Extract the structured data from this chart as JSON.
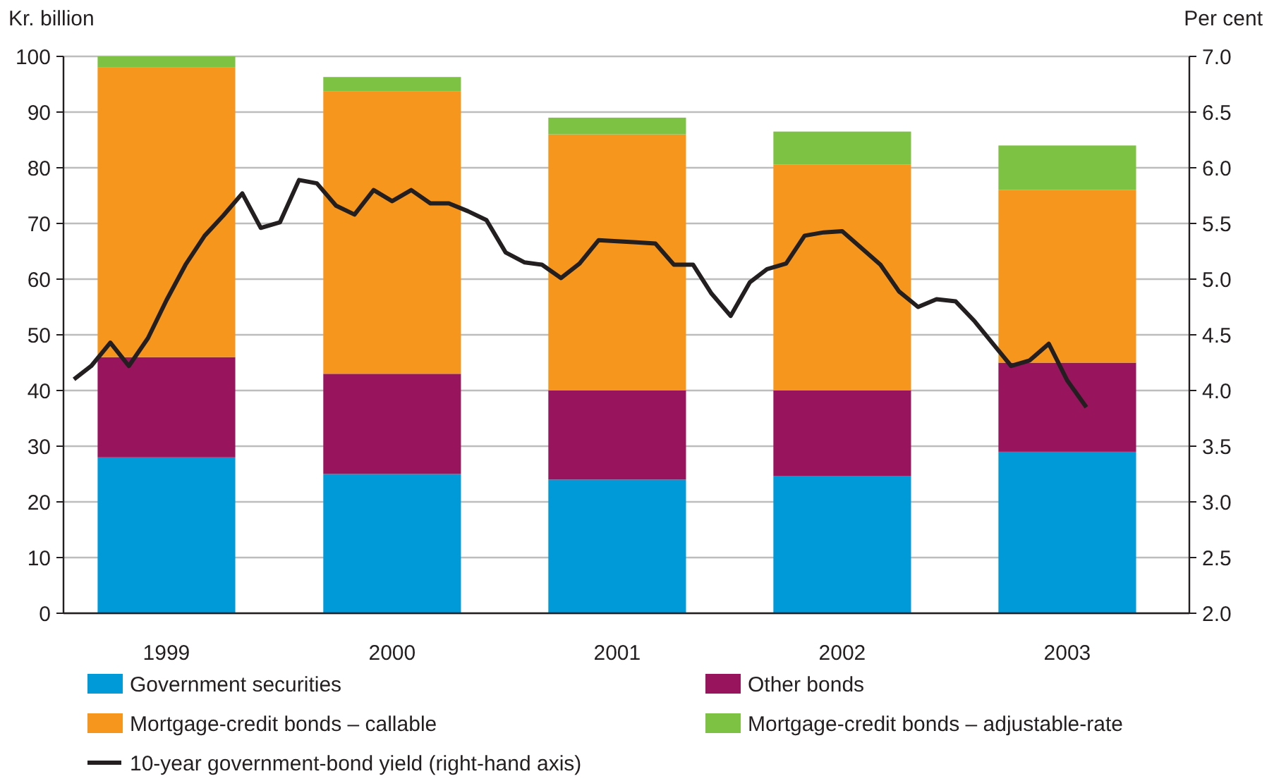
{
  "chart_data": {
    "type": "bar",
    "stacked": true,
    "ylabel": "Kr. billion",
    "y2label": "Per cent",
    "x": [
      "1999-07-01",
      "2000-07-01",
      "2001-07-01",
      "2002-07-01",
      "2003-07-01"
    ],
    "xlim": [
      "1999-01-15",
      "2004-01-15"
    ],
    "xticks": [
      {
        "value": "1999-07-01",
        "label": "1999"
      },
      {
        "value": "2000-07-01",
        "label": "2000"
      },
      {
        "value": "2001-07-01",
        "label": "2001"
      },
      {
        "value": "2002-07-01",
        "label": "2002"
      },
      {
        "value": "2003-07-01",
        "label": "2003"
      }
    ],
    "ylim": [
      0,
      100
    ],
    "yticks": [
      0,
      10,
      20,
      30,
      40,
      50,
      60,
      70,
      80,
      90,
      100
    ],
    "y2lim": [
      2,
      7
    ],
    "y2ticks": [
      {
        "value": 2,
        "label": "2.0"
      },
      {
        "value": 2.5,
        "label": "2.5"
      },
      {
        "value": 3,
        "label": "3.0"
      },
      {
        "value": 3.5,
        "label": "3.5"
      },
      {
        "value": 4,
        "label": "4.0"
      },
      {
        "value": 4.5,
        "label": "4.5"
      },
      {
        "value": 5,
        "label": "5.0"
      },
      {
        "value": 5.5,
        "label": "5.5"
      },
      {
        "value": 6,
        "label": "6.0"
      },
      {
        "value": 6.5,
        "label": "6.5"
      },
      {
        "value": 7,
        "label": "7.0"
      }
    ],
    "grid": "y",
    "legend": "bottom",
    "series": [
      {
        "name": "Government securities",
        "color": "#009ad8",
        "values": [
          28,
          25,
          24,
          24.6,
          29
        ]
      },
      {
        "name": "Other bonds",
        "color": "#98155e",
        "values": [
          18,
          18,
          16,
          15.4,
          16
        ]
      },
      {
        "name": "Mortgage-credit bonds – callable",
        "color": "#f7961d",
        "values": [
          52,
          50.7,
          46,
          40.6,
          31
        ]
      },
      {
        "name": "Mortgage-credit bonds – adjustable-rate",
        "color": "#7dc242",
        "values": [
          2,
          2.6,
          3,
          5.9,
          8
        ]
      },
      {
        "name": "10-year government-bond yield (right-hand axis)",
        "color": "#231f20",
        "type": "line",
        "axis": "y2",
        "line_style": "solid",
        "marker": "none",
        "x": [
          "1999-02",
          "1999-03",
          "1999-04",
          "1999-05",
          "1999-06",
          "1999-07",
          "1999-08",
          "1999-09",
          "1999-10",
          "1999-11",
          "1999-12",
          "2000-01",
          "2000-02",
          "2000-03",
          "2000-04",
          "2000-05",
          "2000-06",
          "2000-07",
          "2000-08",
          "2000-09",
          "2000-10",
          "2000-11",
          "2000-12",
          "2001-01",
          "2001-02",
          "2001-03",
          "2001-04",
          "2001-05",
          "2001-06",
          "2001-07",
          "2001-08",
          "2001-09",
          "2001-10",
          "2001-11",
          "2001-12",
          "2002-01",
          "2002-02",
          "2002-03",
          "2002-04",
          "2002-05",
          "2002-06",
          "2002-07",
          "2002-08",
          "2002-09",
          "2002-10",
          "2002-11",
          "2002-12",
          "2003-01",
          "2003-02",
          "2003-03",
          "2003-04",
          "2003-05",
          "2003-06",
          "2003-07",
          "2003-08"
        ],
        "values": [
          4.1,
          4.22,
          4.43,
          4.22,
          4.47,
          4.81,
          5.13,
          5.39,
          5.57,
          5.77,
          5.46,
          5.51,
          5.89,
          5.86,
          5.66,
          5.58,
          5.8,
          5.7,
          5.8,
          5.68,
          5.68,
          5.61,
          5.53,
          5.24,
          5.15,
          5.13,
          5.01,
          5.14,
          5.35,
          5.34,
          5.33,
          5.32,
          5.13,
          5.13,
          4.87,
          4.67,
          4.97,
          5.09,
          5.14,
          5.39,
          5.42,
          5.43,
          5.28,
          5.13,
          4.89,
          4.75,
          4.82,
          4.8,
          4.62,
          4.43,
          4.22,
          4.27,
          4.42,
          4.09,
          3.85
        ]
      }
    ]
  }
}
